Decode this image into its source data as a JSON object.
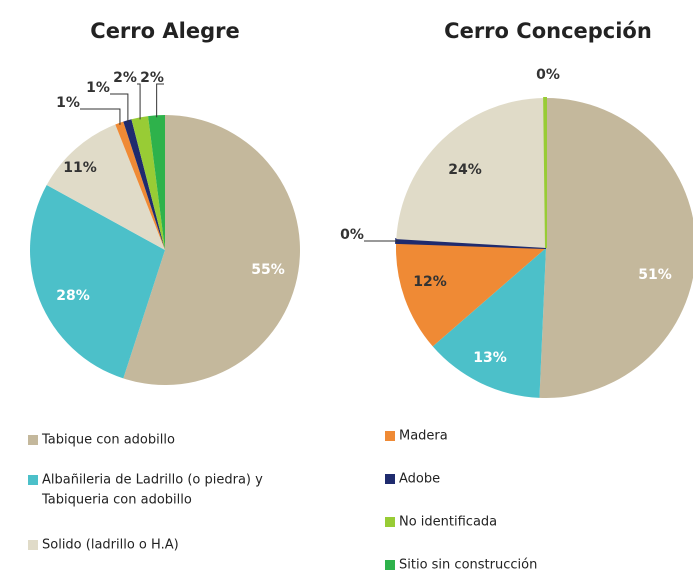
{
  "chart_data": [
    {
      "type": "pie",
      "title": "Cerro Alegre",
      "values": [
        55,
        28,
        11,
        1,
        1,
        2,
        2
      ],
      "value_labels": [
        "55%",
        "28%",
        "11%",
        "1%",
        "1%",
        "2%",
        "2%"
      ],
      "colors": [
        "#c4b89c",
        "#4cc0c9",
        "#e0dbc8",
        "#ef8a35",
        "#1f2b6e",
        "#98cc35",
        "#2eb24b"
      ]
    },
    {
      "type": "pie",
      "title": "Cerro Concepción",
      "values": [
        51,
        13,
        12,
        0.4,
        24,
        0.2
      ],
      "value_labels": [
        "51%",
        "13%",
        "12%",
        "0%",
        "24%",
        "0%"
      ],
      "colors": [
        "#c4b89c",
        "#4cc0c9",
        "#ef8a35",
        "#1f2b6e",
        "#e0dbc8",
        "#98cc35"
      ]
    }
  ],
  "legend": [
    {
      "label": "Tabique con adobillo",
      "color": "#c4b89c"
    },
    {
      "label": "Albañileria de Ladrillo (o piedra) y",
      "label2": "Tabiqueria con adobillo",
      "color": "#4cc0c9"
    },
    {
      "label": "Solido (ladrillo o H.A)",
      "color": "#e0dbc8"
    },
    {
      "label": "Madera",
      "color": "#ef8a35"
    },
    {
      "label": "Adobe",
      "color": "#1f2b6e"
    },
    {
      "label": "No identificada",
      "color": "#98cc35"
    },
    {
      "label": "Sitio sin construcción",
      "color": "#2eb24b"
    }
  ]
}
